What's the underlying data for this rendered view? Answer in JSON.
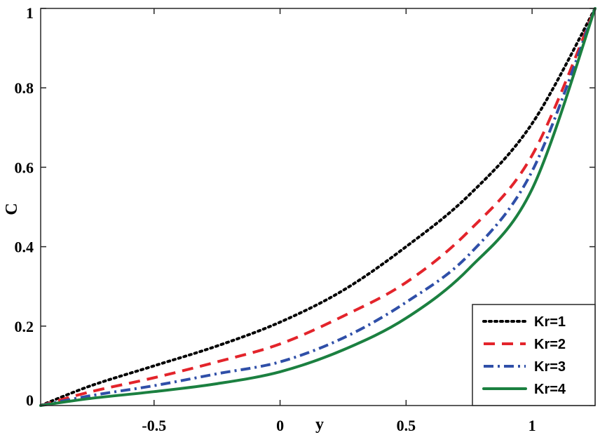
{
  "chart_data": {
    "type": "line",
    "title": "",
    "xlabel": "y",
    "ylabel": "C",
    "xlim": [
      -0.95,
      1.25
    ],
    "ylim": [
      0,
      1
    ],
    "xticks": [
      -0.5,
      0,
      0.5,
      1
    ],
    "xtick_labels": [
      "-0.5",
      "0",
      "0.5",
      "1"
    ],
    "yticks": [
      0,
      0.2,
      0.4,
      0.6,
      0.8,
      1
    ],
    "ytick_labels": [
      "0",
      "0.2",
      "0.4",
      "0.6",
      "0.8",
      "1"
    ],
    "grid": false,
    "legend_position": "bottom-right",
    "x": [
      -0.95,
      -0.75,
      -0.5,
      -0.25,
      0,
      0.25,
      0.5,
      0.75,
      1,
      1.25
    ],
    "series": [
      {
        "name": "Kr=1",
        "color": "#000000",
        "style": "dotted",
        "values": [
          0,
          0.05,
          0.1,
          0.15,
          0.21,
          0.29,
          0.4,
          0.53,
          0.71,
          1
        ]
      },
      {
        "name": "Kr=2",
        "color": "#e3242b",
        "style": "dashed",
        "values": [
          0,
          0.035,
          0.07,
          0.11,
          0.155,
          0.225,
          0.31,
          0.44,
          0.63,
          1
        ]
      },
      {
        "name": "Kr=3",
        "color": "#2f4fa8",
        "style": "dashdot",
        "values": [
          0,
          0.025,
          0.05,
          0.08,
          0.11,
          0.17,
          0.26,
          0.38,
          0.59,
          1
        ]
      },
      {
        "name": "Kr=4",
        "color": "#1b8040",
        "style": "solid",
        "values": [
          0,
          0.018,
          0.035,
          0.055,
          0.085,
          0.14,
          0.22,
          0.345,
          0.545,
          1
        ]
      }
    ]
  }
}
